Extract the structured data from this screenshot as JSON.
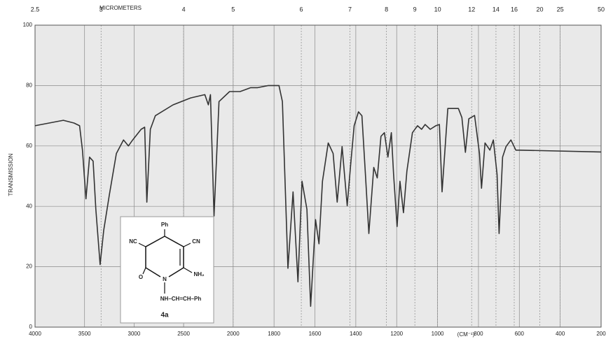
{
  "chart_data": {
    "type": "line",
    "xlabel": "(CM⁻¹)",
    "x2label": "MICROMETERS",
    "ylabel": "TRANSMISSION",
    "x": [
      4000,
      3714,
      3607,
      3550,
      3521,
      3486,
      3450,
      3414,
      3386,
      3343,
      3307,
      3250,
      3179,
      3107,
      3057,
      3014,
      2929,
      2893,
      2871,
      2836,
      2786,
      2607,
      2429,
      2286,
      2250,
      2229,
      2193,
      2143,
      2036,
      1966,
      1914,
      1880,
      1828,
      1776,
      1759,
      1732,
      1707,
      1683,
      1663,
      1639,
      1621,
      1597,
      1580,
      1563,
      1535,
      1511,
      1491,
      1467,
      1442,
      1425,
      1408,
      1387,
      1370,
      1353,
      1336,
      1312,
      1295,
      1277,
      1260,
      1243,
      1226,
      1215,
      1198,
      1184,
      1167,
      1150,
      1123,
      1098,
      1078,
      1061,
      1036,
      1009,
      991,
      978,
      950,
      898,
      881,
      864,
      847,
      819,
      795,
      785,
      768,
      744,
      727,
      709,
      699,
      682,
      665,
      641,
      617,
      600,
      200
    ],
    "values": [
      66.7,
      68.5,
      67.6,
      66.7,
      58.6,
      42.5,
      56.3,
      55,
      39,
      20.7,
      32,
      43.7,
      57.5,
      62,
      60,
      62,
      65.5,
      66.2,
      41.4,
      65.5,
      70,
      73.6,
      75.9,
      77,
      73.6,
      77,
      36.8,
      74.7,
      78,
      78,
      79.3,
      79.3,
      80,
      80,
      74.7,
      19.5,
      44.8,
      15,
      48.3,
      39,
      6.9,
      35.6,
      27.6,
      48.3,
      61,
      57.5,
      41.4,
      59.8,
      40.2,
      54,
      66.7,
      71.3,
      70,
      50.6,
      31,
      52.9,
      49.4,
      63.2,
      64.4,
      56.3,
      64.4,
      50.6,
      33.3,
      48.3,
      37.9,
      51.7,
      64.4,
      66.7,
      65.5,
      67.1,
      65.5,
      66.7,
      67.1,
      44.8,
      72.4,
      72.4,
      69.4,
      57.9,
      69,
      70.1,
      57.5,
      46,
      61,
      58.6,
      62,
      50.6,
      31,
      56.3,
      59.8,
      62,
      58.6,
      58.6,
      58
    ],
    "color": "#333333",
    "xlim": [
      4000,
      200
    ],
    "x_scale_break": 2000,
    "xticks": [
      4000,
      3500,
      3000,
      2500,
      2000,
      1800,
      1600,
      1400,
      1200,
      1000,
      800,
      600,
      400,
      200
    ],
    "x2ticks": [
      2.5,
      3,
      4,
      5,
      6,
      7,
      8,
      9,
      10,
      12,
      14,
      16,
      20,
      25,
      50
    ],
    "ylim": [
      0,
      100
    ],
    "yticks": [
      0,
      20,
      40,
      60,
      80,
      100
    ],
    "grid": true
  },
  "inset": {
    "labels": [
      "Ph",
      "NC",
      "CN",
      "O",
      "N",
      "NH₂",
      "NH–CH=CH–Ph",
      "4a"
    ]
  }
}
